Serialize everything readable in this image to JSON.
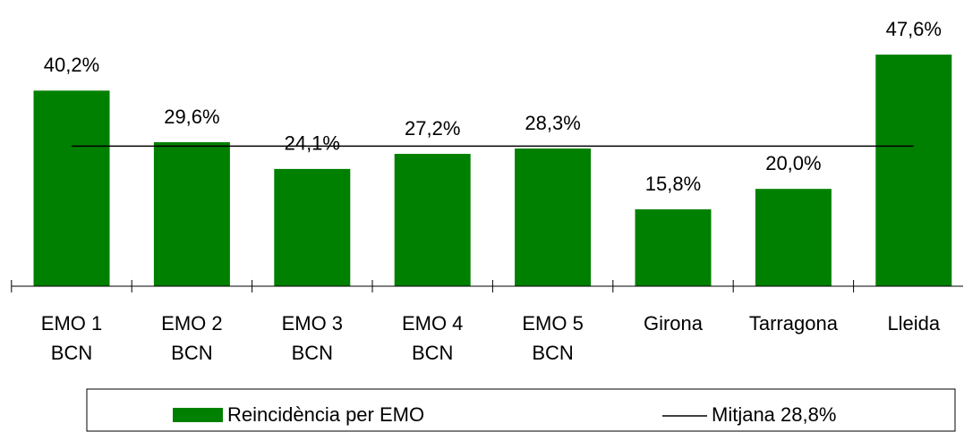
{
  "chart_data": {
    "type": "bar",
    "categories": [
      [
        "EMO 1",
        "BCN"
      ],
      [
        "EMO 2",
        "BCN"
      ],
      [
        "EMO 3",
        "BCN"
      ],
      [
        "EMO 4",
        "BCN"
      ],
      [
        "EMO 5",
        "BCN"
      ],
      [
        "Girona"
      ],
      [
        "Tarragona"
      ],
      [
        "Lleida"
      ]
    ],
    "series": [
      {
        "name": "Reincidència per EMO",
        "color": "#008000",
        "values": [
          40.2,
          29.6,
          24.1,
          27.2,
          28.3,
          15.8,
          20.0,
          47.6
        ],
        "value_labels": [
          "40,2%",
          "29,6%",
          "24,1%",
          "27,2%",
          "28,3%",
          "15,8%",
          "20,0%",
          "47,6%"
        ]
      }
    ],
    "average": {
      "name": "Mitjana 28,8%",
      "value": 28.8,
      "color": "#000000"
    },
    "ylim": [
      0,
      50
    ]
  }
}
